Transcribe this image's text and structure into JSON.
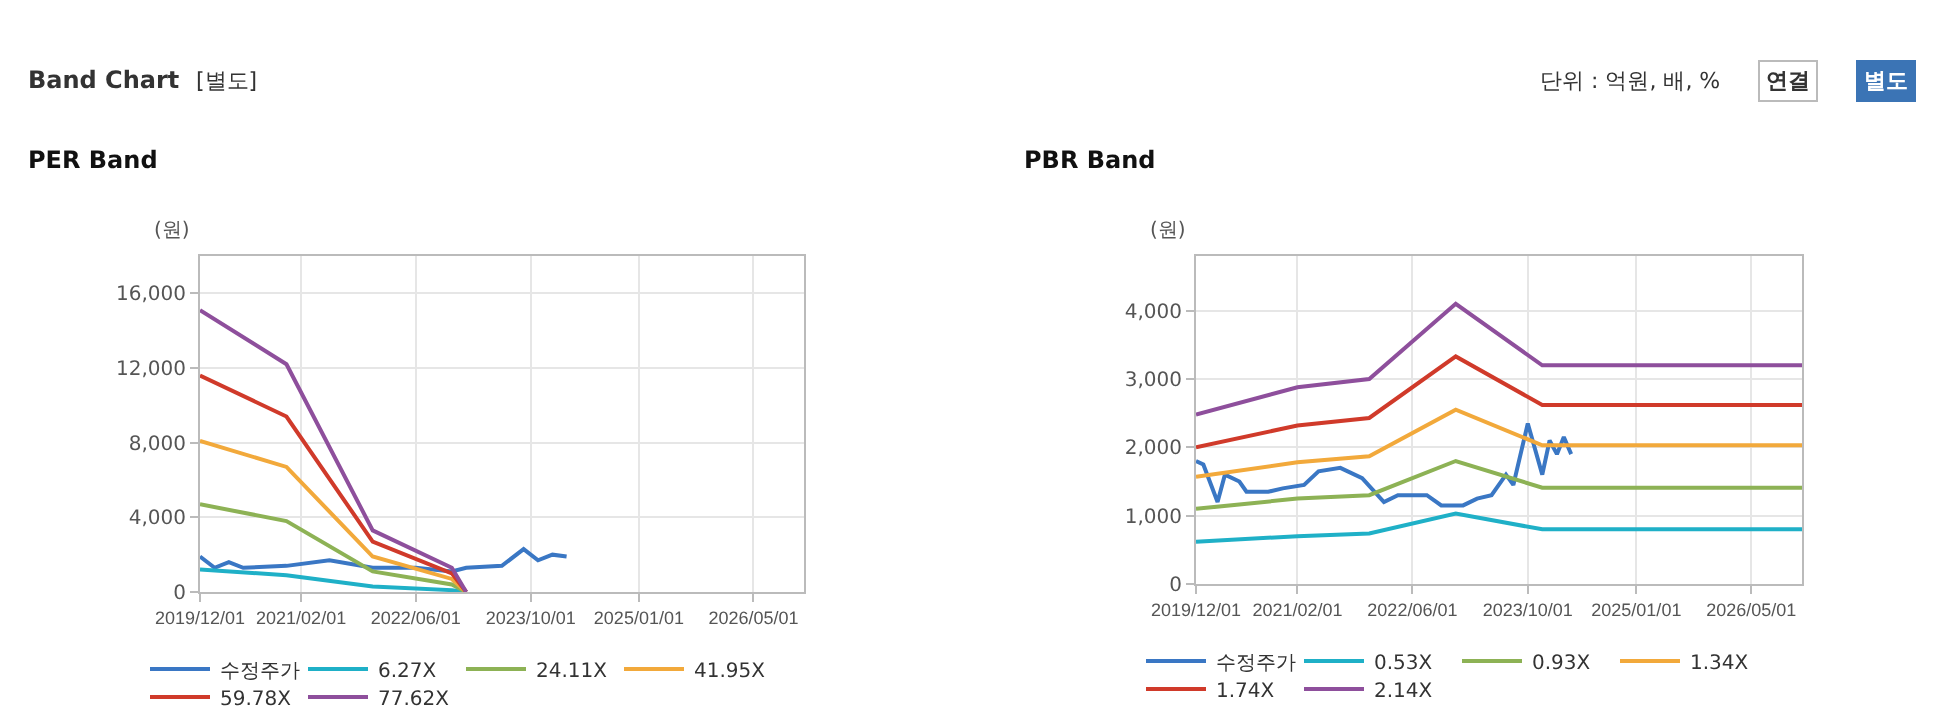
{
  "chart_data": [
    {
      "type": "line",
      "title": "PER Band",
      "ylabel": "(원)",
      "annotations": [
        "Band Chart",
        "[별도]",
        "단위 : 억원, 배, %",
        "연결",
        "별도"
      ],
      "xlim": [
        "2019-12-01",
        "2026-12-01"
      ],
      "xticks": [
        {
          "value": "2019-12-01",
          "label": "2019/12/01"
        },
        {
          "value": "2021-02-01",
          "label": "2021/02/01"
        },
        {
          "value": "2022-06-01",
          "label": "2022/06/01"
        },
        {
          "value": "2023-10-01",
          "label": "2023/10/01"
        },
        {
          "value": "2025-01-01",
          "label": "2025/01/01"
        },
        {
          "value": "2026-05-01",
          "label": "2026/05/01"
        }
      ],
      "ylim": [
        0,
        18000
      ],
      "yticks": [
        {
          "value": 0,
          "label": "0"
        },
        {
          "value": 4000,
          "label": "4,000"
        },
        {
          "value": 8000,
          "label": "8,000"
        },
        {
          "value": 12000,
          "label": "12,000"
        },
        {
          "value": 16000,
          "label": "16,000"
        }
      ],
      "grid": true,
      "legend": "bottom",
      "marker": "none",
      "line_style": "solid",
      "series": [
        {
          "name": "수정주가",
          "color": "#3a77c4",
          "x": [
            "2019-12",
            "2020-02",
            "2020-04",
            "2020-06",
            "2020-12",
            "2021-06",
            "2021-12",
            "2022-06",
            "2022-11",
            "2023-01",
            "2023-06",
            "2023-09",
            "2023-11",
            "2024-01",
            "2024-03"
          ],
          "values": [
            1900,
            1300,
            1600,
            1300,
            1400,
            1700,
            1300,
            1300,
            1100,
            1300,
            1400,
            2300,
            1700,
            2000,
            1900
          ]
        },
        {
          "name": "6.27X",
          "color": "#1fb0c7",
          "x": [
            "2019-12",
            "2020-12",
            "2021-12",
            "2022-11",
            "2023-01"
          ],
          "values": [
            1200,
            900,
            300,
            100,
            0
          ]
        },
        {
          "name": "24.11X",
          "color": "#8db255",
          "x": [
            "2019-12",
            "2020-12",
            "2021-12",
            "2022-11",
            "2023-01"
          ],
          "values": [
            4700,
            3800,
            1100,
            400,
            0
          ]
        },
        {
          "name": "41.95X",
          "color": "#f2a93b",
          "x": [
            "2019-12",
            "2020-12",
            "2021-12",
            "2022-11",
            "2023-01"
          ],
          "values": [
            8100,
            6700,
            1900,
            700,
            0
          ]
        },
        {
          "name": "59.78X",
          "color": "#d03a2a",
          "x": [
            "2019-12",
            "2020-12",
            "2021-12",
            "2022-11",
            "2023-01"
          ],
          "values": [
            11600,
            9400,
            2700,
            1000,
            0
          ]
        },
        {
          "name": "77.62X",
          "color": "#8e4f9c",
          "x": [
            "2019-12",
            "2020-12",
            "2021-12",
            "2022-11",
            "2023-01"
          ],
          "values": [
            15100,
            12200,
            3300,
            1300,
            0
          ]
        }
      ]
    },
    {
      "type": "line",
      "title": "PBR Band",
      "ylabel": "(원)",
      "xlim": [
        "2019-12-01",
        "2026-12-01"
      ],
      "xticks": [
        {
          "value": "2019-12-01",
          "label": "2019/12/01"
        },
        {
          "value": "2021-02-01",
          "label": "2021/02/01"
        },
        {
          "value": "2022-06-01",
          "label": "2022/06/01"
        },
        {
          "value": "2023-10-01",
          "label": "2023/10/01"
        },
        {
          "value": "2025-01-01",
          "label": "2025/01/01"
        },
        {
          "value": "2026-05-01",
          "label": "2026/05/01"
        }
      ],
      "ylim": [
        0,
        4800
      ],
      "yticks": [
        {
          "value": 0,
          "label": "0"
        },
        {
          "value": 1000,
          "label": "1,000"
        },
        {
          "value": 2000,
          "label": "2,000"
        },
        {
          "value": 3000,
          "label": "3,000"
        },
        {
          "value": 4000,
          "label": "4,000"
        }
      ],
      "grid": true,
      "legend": "bottom",
      "marker": "none",
      "line_style": "solid",
      "series": [
        {
          "name": "수정주가",
          "color": "#3a77c4",
          "x": [
            "2019-12",
            "2020-01",
            "2020-03",
            "2020-04",
            "2020-06",
            "2020-07",
            "2020-10",
            "2020-12",
            "2021-03",
            "2021-05",
            "2021-08",
            "2021-11",
            "2022-02",
            "2022-04",
            "2022-08",
            "2022-10",
            "2023-01",
            "2023-03",
            "2023-05",
            "2023-07",
            "2023-08",
            "2023-10",
            "2023-12",
            "2024-01",
            "2024-02",
            "2024-03",
            "2024-04"
          ],
          "values": [
            1800,
            1750,
            1200,
            1600,
            1500,
            1350,
            1350,
            1400,
            1450,
            1650,
            1700,
            1550,
            1200,
            1300,
            1300,
            1150,
            1150,
            1250,
            1300,
            1600,
            1450,
            2350,
            1600,
            2100,
            1900,
            2150,
            1900
          ]
        },
        {
          "name": "0.53X",
          "color": "#1fb0c7",
          "x": [
            "2019-12",
            "2021-02",
            "2021-12",
            "2022-12",
            "2023-12",
            "2026-12"
          ],
          "values": [
            620,
            700,
            740,
            1030,
            800,
            800
          ]
        },
        {
          "name": "0.93X",
          "color": "#8db255",
          "x": [
            "2019-12",
            "2021-02",
            "2021-12",
            "2022-12",
            "2023-12",
            "2026-12"
          ],
          "values": [
            1100,
            1250,
            1300,
            1800,
            1410,
            1410
          ]
        },
        {
          "name": "1.34X",
          "color": "#f2a93b",
          "x": [
            "2019-12",
            "2021-02",
            "2021-12",
            "2022-12",
            "2023-12",
            "2026-12"
          ],
          "values": [
            1570,
            1780,
            1870,
            2550,
            2030,
            2030
          ]
        },
        {
          "name": "1.74X",
          "color": "#d03a2a",
          "x": [
            "2019-12",
            "2021-02",
            "2021-12",
            "2022-12",
            "2023-12",
            "2026-12"
          ],
          "values": [
            2000,
            2320,
            2430,
            3330,
            2620,
            2620
          ]
        },
        {
          "name": "2.14X",
          "color": "#8e4f9c",
          "x": [
            "2019-12",
            "2021-02",
            "2021-12",
            "2022-12",
            "2023-12",
            "2026-12"
          ],
          "values": [
            2480,
            2880,
            3000,
            4100,
            3200,
            3200
          ]
        }
      ]
    }
  ]
}
